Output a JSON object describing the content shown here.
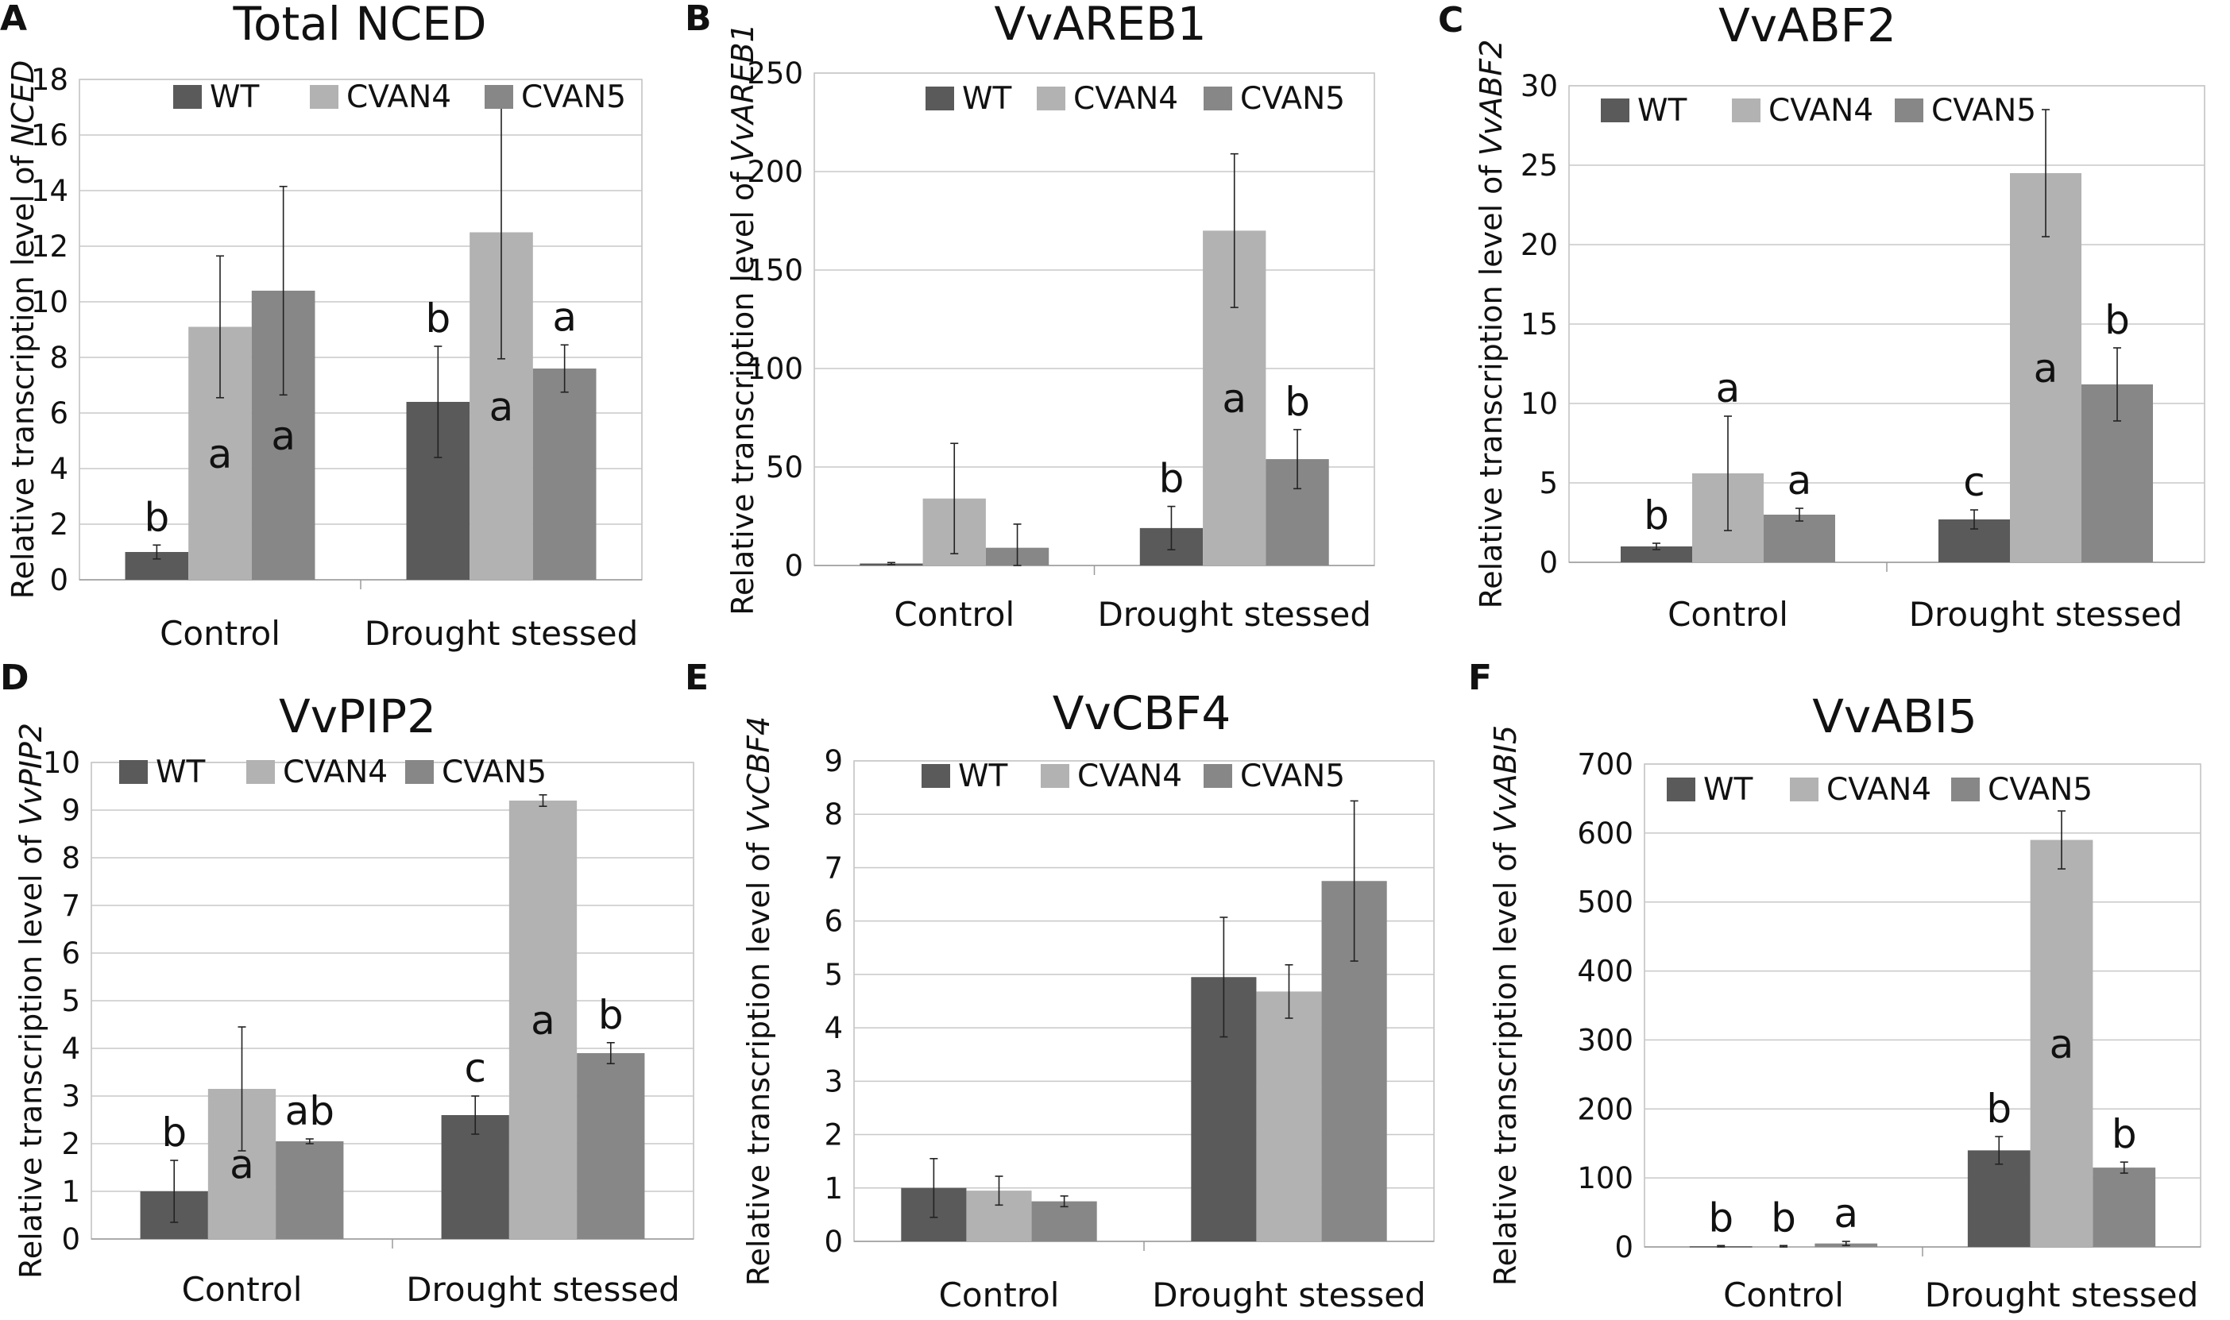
{
  "colors": {
    "WT": "#5a5a5a",
    "CVAN4": "#b2b2b2",
    "CVAN5": "#878787"
  },
  "chart_data": [
    {
      "panel": "A",
      "type": "bar",
      "title": "Total NCED",
      "ylabel_prefix": "Relative transcription level of ",
      "ylabel_gene": "NCED",
      "categories": [
        "Control",
        "Drought stessed"
      ],
      "ylim": [
        0,
        18
      ],
      "ytick_step": 2,
      "grid": true,
      "series": [
        {
          "name": "WT",
          "values": [
            1.0,
            6.4
          ],
          "errors": [
            0.25,
            2.0
          ],
          "labels": [
            "b",
            "b"
          ]
        },
        {
          "name": "CVAN4",
          "values": [
            9.1,
            12.5
          ],
          "errors": [
            2.55,
            4.55
          ],
          "labels": [
            "a",
            "a"
          ]
        },
        {
          "name": "CVAN5",
          "values": [
            10.4,
            7.6
          ],
          "errors": [
            3.75,
            0.85
          ],
          "labels": [
            "a",
            "a"
          ]
        }
      ]
    },
    {
      "panel": "B",
      "type": "bar",
      "title": "VvAREB1",
      "ylabel_prefix": "Relative transcription level of ",
      "ylabel_gene": "VvAREB1",
      "categories": [
        "Control",
        "Drought stessed"
      ],
      "ylim": [
        0,
        250
      ],
      "ytick_step": 50,
      "grid": true,
      "series": [
        {
          "name": "WT",
          "values": [
            1,
            19
          ],
          "errors": [
            0.5,
            11
          ],
          "labels": [
            "",
            "b"
          ]
        },
        {
          "name": "CVAN4",
          "values": [
            34,
            170
          ],
          "errors": [
            28,
            39
          ],
          "labels": [
            "",
            "a"
          ]
        },
        {
          "name": "CVAN5",
          "values": [
            9,
            54
          ],
          "errors": [
            12,
            15
          ],
          "labels": [
            "",
            "b"
          ]
        }
      ]
    },
    {
      "panel": "C",
      "type": "bar",
      "title": "VvABF2",
      "ylabel_prefix": "Relative transcription level of ",
      "ylabel_gene": "VvABF2",
      "categories": [
        "Control",
        "Drought stessed"
      ],
      "ylim": [
        0,
        30
      ],
      "ytick_step": 5,
      "grid": true,
      "series": [
        {
          "name": "WT",
          "values": [
            1.0,
            2.7
          ],
          "errors": [
            0.2,
            0.6
          ],
          "labels": [
            "b",
            "c"
          ]
        },
        {
          "name": "CVAN4",
          "values": [
            5.6,
            24.5
          ],
          "errors": [
            3.6,
            4.0
          ],
          "labels": [
            "a",
            "a"
          ]
        },
        {
          "name": "CVAN5",
          "values": [
            3.0,
            11.2
          ],
          "errors": [
            0.4,
            2.3
          ],
          "labels": [
            "a",
            "b"
          ]
        }
      ]
    },
    {
      "panel": "D",
      "type": "bar",
      "title": "VvPIP2",
      "ylabel_prefix": "Relative transcription level of ",
      "ylabel_gene": "VvPIP2",
      "categories": [
        "Control",
        "Drought stessed"
      ],
      "ylim": [
        0,
        10
      ],
      "ytick_step": 1,
      "grid": true,
      "series": [
        {
          "name": "WT",
          "values": [
            1.0,
            2.6
          ],
          "errors": [
            0.65,
            0.4
          ],
          "labels": [
            "b",
            "c"
          ]
        },
        {
          "name": "CVAN4",
          "values": [
            3.15,
            9.2
          ],
          "errors": [
            1.3,
            0.12
          ],
          "labels": [
            "a",
            "a"
          ]
        },
        {
          "name": "CVAN5",
          "values": [
            2.05,
            3.9
          ],
          "errors": [
            0.05,
            0.22
          ],
          "labels": [
            "ab",
            "b"
          ]
        }
      ]
    },
    {
      "panel": "E",
      "type": "bar",
      "title": "VvCBF4",
      "ylabel_prefix": "Relative transcription level of ",
      "ylabel_gene": "VvCBF4",
      "categories": [
        "Control",
        "Drought stessed"
      ],
      "ylim": [
        0,
        9
      ],
      "ytick_step": 1,
      "grid": true,
      "series": [
        {
          "name": "WT",
          "values": [
            1.0,
            4.95
          ],
          "errors": [
            0.55,
            1.12
          ],
          "labels": [
            "",
            ""
          ]
        },
        {
          "name": "CVAN4",
          "values": [
            0.95,
            4.68
          ],
          "errors": [
            0.27,
            0.5
          ],
          "labels": [
            "",
            ""
          ]
        },
        {
          "name": "CVAN5",
          "values": [
            0.75,
            6.75
          ],
          "errors": [
            0.1,
            1.5
          ],
          "labels": [
            "",
            ""
          ]
        }
      ]
    },
    {
      "panel": "F",
      "type": "bar",
      "title": "VvABI5",
      "ylabel_prefix": "Relative transcription level of ",
      "ylabel_gene": "VvABI5",
      "categories": [
        "Control",
        "Drought stessed"
      ],
      "ylim": [
        0,
        700
      ],
      "ytick_step": 100,
      "grid": true,
      "series": [
        {
          "name": "WT",
          "values": [
            1,
            140
          ],
          "errors": [
            1,
            20
          ],
          "labels": [
            "b",
            "b"
          ]
        },
        {
          "name": "CVAN4",
          "values": [
            1,
            590
          ],
          "errors": [
            1,
            42
          ],
          "labels": [
            "b",
            "a"
          ]
        },
        {
          "name": "CVAN5",
          "values": [
            5,
            115
          ],
          "errors": [
            3,
            8
          ],
          "labels": [
            "a",
            "b"
          ]
        }
      ]
    }
  ]
}
